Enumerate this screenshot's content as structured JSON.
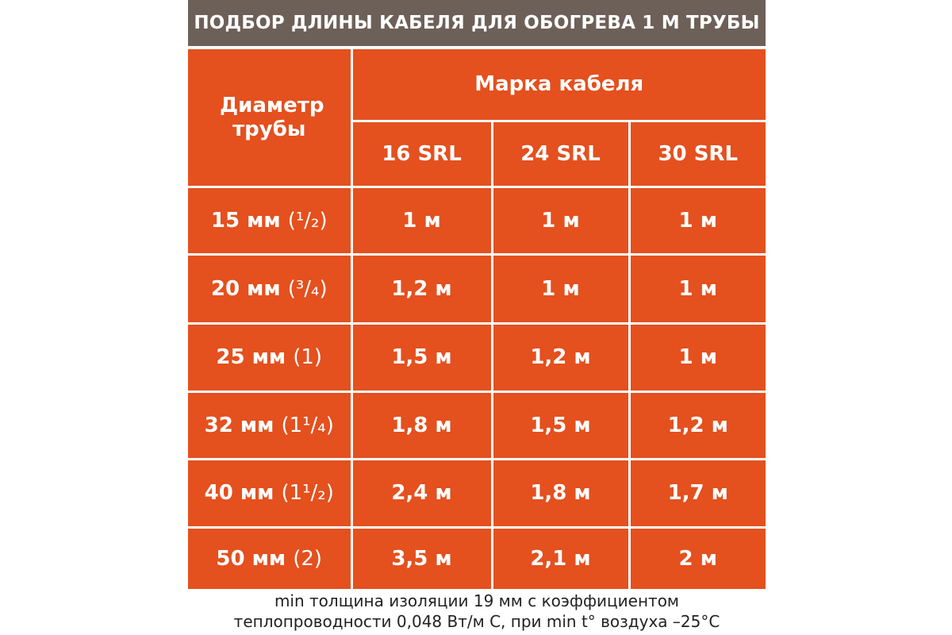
{
  "header": {
    "title": "ПОДБОР ДЛИНЫ КАБЕЛЯ ДЛЯ ОБОГРЕВА 1 М ТРУБЫ"
  },
  "table": {
    "corner": "Диаметр трубы",
    "group_header": "Марка кабеля",
    "columns": [
      "16 SRL",
      "24 SRL",
      "30 SRL"
    ],
    "rows": [
      {
        "size": "15 мм",
        "inch": "(¹/₂)",
        "values": [
          "1 м",
          "1 м",
          "1 м"
        ]
      },
      {
        "size": "20 мм",
        "inch": "(³/₄)",
        "values": [
          "1,2 м",
          "1 м",
          "1 м"
        ]
      },
      {
        "size": "25 мм",
        "inch": "(1)",
        "values": [
          "1,5 м",
          "1,2 м",
          "1 м"
        ]
      },
      {
        "size": "32 мм",
        "inch": "(1¹/₄)",
        "values": [
          "1,8 м",
          "1,5 м",
          "1,2 м"
        ]
      },
      {
        "size": "40 мм",
        "inch": "(1¹/₂)",
        "values": [
          "2,4 м",
          "1,8 м",
          "1,7 м"
        ]
      },
      {
        "size": "50 мм",
        "inch": "(2)",
        "values": [
          "3,5 м",
          "2,1 м",
          "2 м"
        ]
      }
    ]
  },
  "footer": {
    "lines": [
      "min толщина изоляции 19 мм с коэффициентом",
      "теплопроводности 0,048 Вт/м С, при min t° воздуха –25°С"
    ]
  }
}
